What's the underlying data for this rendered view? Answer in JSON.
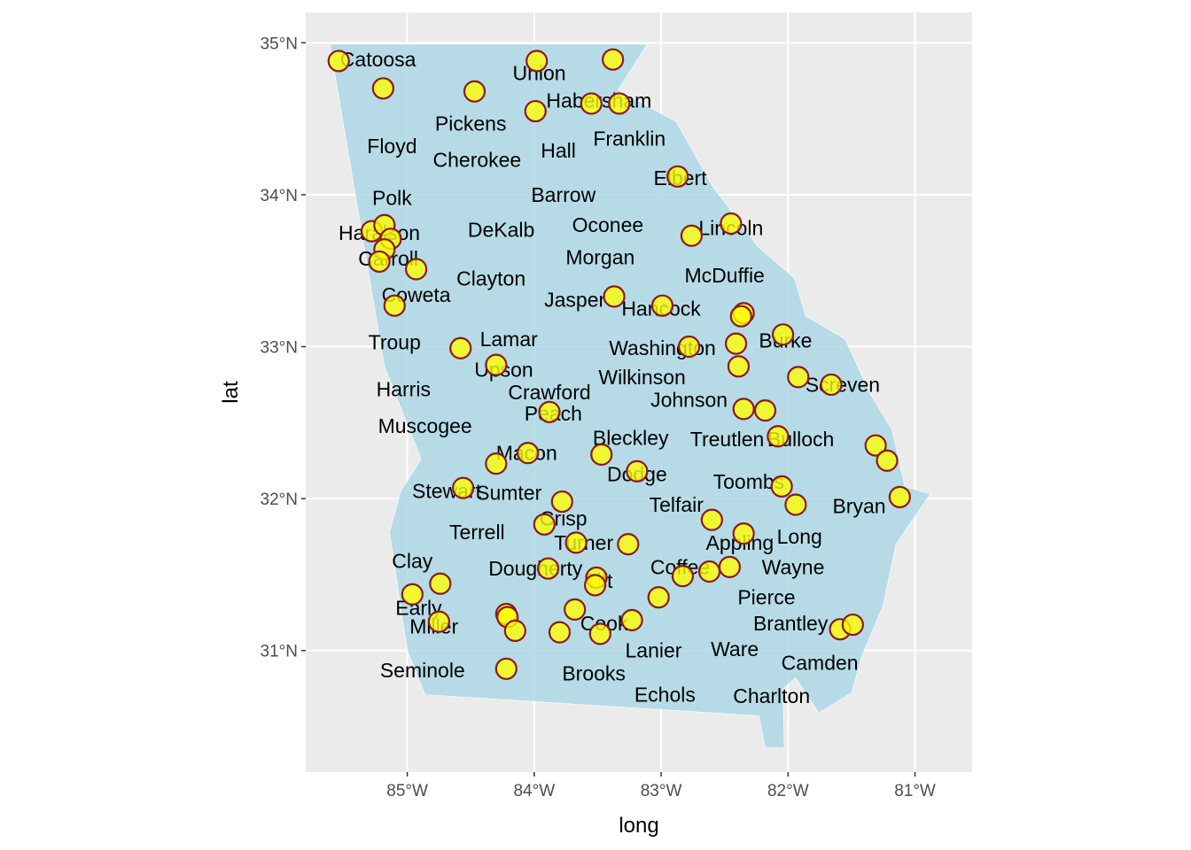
{
  "chart_data": {
    "type": "scatter",
    "xlabel": "long",
    "ylabel": "lat",
    "xlim": [
      -85.8,
      -80.55
    ],
    "ylim": [
      30.2,
      35.2
    ],
    "x_ticks": [
      -85,
      -84,
      -83,
      -82,
      -81
    ],
    "y_ticks": [
      31,
      32,
      33,
      34,
      35
    ],
    "x_tick_labels": [
      "85°W",
      "84°W",
      "83°W",
      "82°W",
      "81°W"
    ],
    "y_tick_labels": [
      "31°N",
      "32°N",
      "33°N",
      "34°N",
      "35°N"
    ],
    "grid": true,
    "colors": {
      "panel": "#ebebeb",
      "grid": "#ffffff",
      "state_fill": "#add8e6",
      "point_fill": "#ffff00",
      "point_stroke": "#8b1a1a"
    },
    "state_outline": [
      [
        -85.61,
        34.99
      ],
      [
        -83.11,
        34.99
      ],
      [
        -83.34,
        34.69
      ],
      [
        -82.88,
        34.48
      ],
      [
        -82.59,
        34.05
      ],
      [
        -82.24,
        33.66
      ],
      [
        -81.95,
        33.45
      ],
      [
        -81.86,
        33.2
      ],
      [
        -81.55,
        33.05
      ],
      [
        -81.36,
        32.7
      ],
      [
        -81.18,
        32.45
      ],
      [
        -81.08,
        32.08
      ],
      [
        -80.88,
        32.03
      ],
      [
        -81.15,
        31.7
      ],
      [
        -81.25,
        31.3
      ],
      [
        -81.42,
        30.96
      ],
      [
        -81.5,
        30.72
      ],
      [
        -81.76,
        30.59
      ],
      [
        -81.94,
        30.82
      ],
      [
        -82.04,
        30.75
      ],
      [
        -82.03,
        30.36
      ],
      [
        -82.18,
        30.36
      ],
      [
        -82.23,
        30.57
      ],
      [
        -84.86,
        30.71
      ],
      [
        -85.0,
        31.0
      ],
      [
        -85.14,
        31.78
      ],
      [
        -85.05,
        32.05
      ],
      [
        -84.89,
        32.26
      ],
      [
        -85.18,
        32.87
      ],
      [
        -85.61,
        34.99
      ]
    ],
    "labels": [
      {
        "x": -85.23,
        "y": 34.89,
        "text": "Catoosa"
      },
      {
        "x": -83.96,
        "y": 34.8,
        "text": "Union"
      },
      {
        "x": -83.49,
        "y": 34.62,
        "text": "Habersham"
      },
      {
        "x": -84.5,
        "y": 34.47,
        "text": "Pickens"
      },
      {
        "x": -83.25,
        "y": 34.37,
        "text": "Franklin"
      },
      {
        "x": -85.12,
        "y": 34.32,
        "text": "Floyd"
      },
      {
        "x": -83.81,
        "y": 34.29,
        "text": "Hall"
      },
      {
        "x": -84.45,
        "y": 34.23,
        "text": "Cherokee"
      },
      {
        "x": -82.85,
        "y": 34.11,
        "text": "Elbert"
      },
      {
        "x": -85.12,
        "y": 33.98,
        "text": "Polk"
      },
      {
        "x": -83.77,
        "y": 34.0,
        "text": "Barrow"
      },
      {
        "x": -83.42,
        "y": 33.8,
        "text": "Oconee"
      },
      {
        "x": -82.45,
        "y": 33.78,
        "text": "Lincoln"
      },
      {
        "x": -84.26,
        "y": 33.77,
        "text": "DeKalb"
      },
      {
        "x": -85.22,
        "y": 33.75,
        "text": "Haralson"
      },
      {
        "x": -83.48,
        "y": 33.59,
        "text": "Morgan"
      },
      {
        "x": -85.15,
        "y": 33.58,
        "text": "Carroll"
      },
      {
        "x": -84.34,
        "y": 33.45,
        "text": "Clayton"
      },
      {
        "x": -82.5,
        "y": 33.47,
        "text": "McDuffie"
      },
      {
        "x": -84.93,
        "y": 33.34,
        "text": "Coweta"
      },
      {
        "x": -83.68,
        "y": 33.31,
        "text": "Jasper"
      },
      {
        "x": -83.0,
        "y": 33.25,
        "text": "Hancock"
      },
      {
        "x": -85.1,
        "y": 33.03,
        "text": "Troup"
      },
      {
        "x": -84.2,
        "y": 33.05,
        "text": "Lamar"
      },
      {
        "x": -82.99,
        "y": 32.99,
        "text": "Washington"
      },
      {
        "x": -82.02,
        "y": 33.04,
        "text": "Burke"
      },
      {
        "x": -84.24,
        "y": 32.85,
        "text": "Upson"
      },
      {
        "x": -83.15,
        "y": 32.8,
        "text": "Wilkinson"
      },
      {
        "x": -81.57,
        "y": 32.75,
        "text": "Screven"
      },
      {
        "x": -85.03,
        "y": 32.72,
        "text": "Harris"
      },
      {
        "x": -83.88,
        "y": 32.7,
        "text": "Crawford"
      },
      {
        "x": -82.78,
        "y": 32.65,
        "text": "Johnson"
      },
      {
        "x": -83.85,
        "y": 32.56,
        "text": "Peach"
      },
      {
        "x": -84.86,
        "y": 32.48,
        "text": "Muscogee"
      },
      {
        "x": -83.24,
        "y": 32.4,
        "text": "Bleckley"
      },
      {
        "x": -82.48,
        "y": 32.39,
        "text": "Treutlen"
      },
      {
        "x": -81.9,
        "y": 32.39,
        "text": "Bulloch"
      },
      {
        "x": -84.06,
        "y": 32.3,
        "text": "Macon"
      },
      {
        "x": -83.19,
        "y": 32.16,
        "text": "Dodge"
      },
      {
        "x": -82.31,
        "y": 32.11,
        "text": "Toombs"
      },
      {
        "x": -84.69,
        "y": 32.05,
        "text": "Stewart"
      },
      {
        "x": -84.2,
        "y": 32.04,
        "text": "Sumter"
      },
      {
        "x": -82.88,
        "y": 31.96,
        "text": "Telfair"
      },
      {
        "x": -81.44,
        "y": 31.95,
        "text": "Bryan"
      },
      {
        "x": -83.77,
        "y": 31.87,
        "text": "Crisp"
      },
      {
        "x": -84.45,
        "y": 31.78,
        "text": "Terrell"
      },
      {
        "x": -81.91,
        "y": 31.75,
        "text": "Long"
      },
      {
        "x": -83.61,
        "y": 31.71,
        "text": "Turner"
      },
      {
        "x": -82.38,
        "y": 31.71,
        "text": "Appling"
      },
      {
        "x": -84.96,
        "y": 31.59,
        "text": "Clay"
      },
      {
        "x": -83.99,
        "y": 31.54,
        "text": "Dougherty"
      },
      {
        "x": -82.85,
        "y": 31.55,
        "text": "Coffee"
      },
      {
        "x": -81.96,
        "y": 31.55,
        "text": "Wayne"
      },
      {
        "x": -83.49,
        "y": 31.46,
        "text": "Tift"
      },
      {
        "x": -82.17,
        "y": 31.35,
        "text": "Pierce"
      },
      {
        "x": -84.91,
        "y": 31.28,
        "text": "Early"
      },
      {
        "x": -84.79,
        "y": 31.16,
        "text": "Miller"
      },
      {
        "x": -83.45,
        "y": 31.18,
        "text": "Cook"
      },
      {
        "x": -81.98,
        "y": 31.18,
        "text": "Brantley"
      },
      {
        "x": -83.06,
        "y": 31.0,
        "text": "Lanier"
      },
      {
        "x": -82.42,
        "y": 31.01,
        "text": "Ware"
      },
      {
        "x": -81.75,
        "y": 30.92,
        "text": "Camden"
      },
      {
        "x": -84.88,
        "y": 30.87,
        "text": "Seminole"
      },
      {
        "x": -83.53,
        "y": 30.85,
        "text": "Brooks"
      },
      {
        "x": -82.97,
        "y": 30.71,
        "text": "Echols"
      },
      {
        "x": -82.13,
        "y": 30.7,
        "text": "Charlton"
      }
    ],
    "points": [
      {
        "x": -85.54,
        "y": 34.88
      },
      {
        "x": -85.19,
        "y": 34.7
      },
      {
        "x": -84.47,
        "y": 34.68
      },
      {
        "x": -83.98,
        "y": 34.88
      },
      {
        "x": -83.38,
        "y": 34.89
      },
      {
        "x": -83.99,
        "y": 34.55
      },
      {
        "x": -83.55,
        "y": 34.6
      },
      {
        "x": -83.33,
        "y": 34.6
      },
      {
        "x": -82.87,
        "y": 34.12
      },
      {
        "x": -82.45,
        "y": 33.81
      },
      {
        "x": -82.76,
        "y": 33.73
      },
      {
        "x": -85.28,
        "y": 33.76
      },
      {
        "x": -85.18,
        "y": 33.8
      },
      {
        "x": -85.13,
        "y": 33.71
      },
      {
        "x": -85.18,
        "y": 33.64
      },
      {
        "x": -85.22,
        "y": 33.56
      },
      {
        "x": -84.93,
        "y": 33.51
      },
      {
        "x": -85.1,
        "y": 33.27
      },
      {
        "x": -83.37,
        "y": 33.33
      },
      {
        "x": -82.99,
        "y": 33.27
      },
      {
        "x": -82.35,
        "y": 33.22
      },
      {
        "x": -82.37,
        "y": 33.2
      },
      {
        "x": -82.04,
        "y": 33.08
      },
      {
        "x": -84.58,
        "y": 32.99
      },
      {
        "x": -84.3,
        "y": 32.88
      },
      {
        "x": -82.78,
        "y": 33.0
      },
      {
        "x": -82.41,
        "y": 33.02
      },
      {
        "x": -82.39,
        "y": 32.87
      },
      {
        "x": -81.92,
        "y": 32.8
      },
      {
        "x": -81.66,
        "y": 32.75
      },
      {
        "x": -82.35,
        "y": 32.59
      },
      {
        "x": -82.18,
        "y": 32.58
      },
      {
        "x": -83.88,
        "y": 32.57
      },
      {
        "x": -82.08,
        "y": 32.41
      },
      {
        "x": -81.31,
        "y": 32.35
      },
      {
        "x": -81.22,
        "y": 32.25
      },
      {
        "x": -83.47,
        "y": 32.29
      },
      {
        "x": -84.05,
        "y": 32.3
      },
      {
        "x": -84.3,
        "y": 32.23
      },
      {
        "x": -83.19,
        "y": 32.18
      },
      {
        "x": -82.05,
        "y": 32.08
      },
      {
        "x": -84.56,
        "y": 32.07
      },
      {
        "x": -83.78,
        "y": 31.98
      },
      {
        "x": -81.94,
        "y": 31.96
      },
      {
        "x": -81.12,
        "y": 32.01
      },
      {
        "x": -82.6,
        "y": 31.86
      },
      {
        "x": -83.92,
        "y": 31.83
      },
      {
        "x": -82.35,
        "y": 31.77
      },
      {
        "x": -83.67,
        "y": 31.71
      },
      {
        "x": -83.26,
        "y": 31.7
      },
      {
        "x": -83.89,
        "y": 31.54
      },
      {
        "x": -82.83,
        "y": 31.49
      },
      {
        "x": -82.62,
        "y": 31.52
      },
      {
        "x": -82.46,
        "y": 31.55
      },
      {
        "x": -83.51,
        "y": 31.48
      },
      {
        "x": -83.52,
        "y": 31.43
      },
      {
        "x": -84.74,
        "y": 31.44
      },
      {
        "x": -84.96,
        "y": 31.37
      },
      {
        "x": -83.02,
        "y": 31.35
      },
      {
        "x": -83.68,
        "y": 31.27
      },
      {
        "x": -84.22,
        "y": 31.24
      },
      {
        "x": -84.21,
        "y": 31.22
      },
      {
        "x": -83.23,
        "y": 31.2
      },
      {
        "x": -84.75,
        "y": 31.19
      },
      {
        "x": -84.15,
        "y": 31.13
      },
      {
        "x": -83.8,
        "y": 31.12
      },
      {
        "x": -83.48,
        "y": 31.11
      },
      {
        "x": -81.59,
        "y": 31.14
      },
      {
        "x": -81.49,
        "y": 31.17
      },
      {
        "x": -84.22,
        "y": 30.88
      }
    ]
  }
}
